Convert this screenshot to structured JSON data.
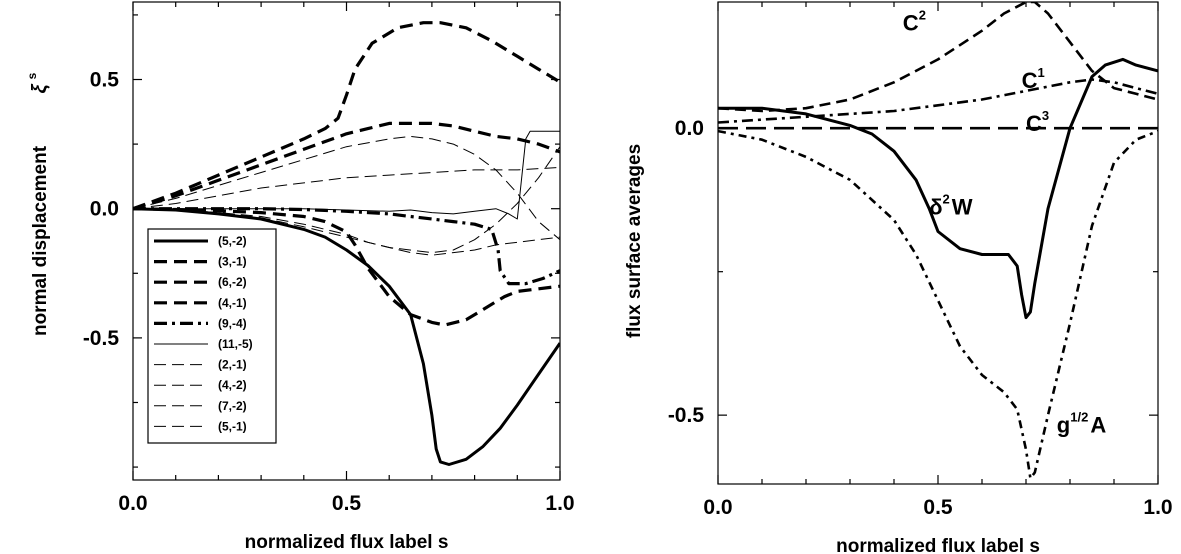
{
  "chart_data": [
    {
      "type": "line",
      "xlabel": "normalized flux label s",
      "ylabel": "normal displacement",
      "ylabel_symbol": "ξ",
      "ylabel_symbol_sup": "s",
      "xlim": [
        0,
        1
      ],
      "ylim": [
        -1.05,
        0.8
      ],
      "xticks": [
        0.0,
        0.5,
        1.0
      ],
      "xtick_labels": [
        "0.0",
        "0.5",
        "1.0"
      ],
      "yticks": [
        -0.5,
        0.0,
        0.5
      ],
      "ytick_labels": [
        "-0.5",
        "0.0",
        "0.5"
      ],
      "legend_placement": "lower-left",
      "series": [
        {
          "name": "(5,-2)",
          "style": "solid-thick",
          "x": [
            0,
            0.1,
            0.2,
            0.3,
            0.4,
            0.45,
            0.5,
            0.55,
            0.6,
            0.65,
            0.68,
            0.7,
            0.71,
            0.72,
            0.74,
            0.78,
            0.82,
            0.86,
            0.9,
            0.95,
            1.0
          ],
          "y": [
            0,
            -0.005,
            -0.02,
            -0.04,
            -0.08,
            -0.11,
            -0.16,
            -0.22,
            -0.3,
            -0.41,
            -0.6,
            -0.8,
            -0.93,
            -0.98,
            -0.99,
            -0.97,
            -0.92,
            -0.85,
            -0.76,
            -0.64,
            -0.52
          ]
        },
        {
          "name": "(3,-1)",
          "style": "dashed-thick",
          "x": [
            0,
            0.1,
            0.2,
            0.3,
            0.4,
            0.45,
            0.48,
            0.5,
            0.52,
            0.56,
            0.62,
            0.68,
            0.72,
            0.78,
            0.84,
            0.9,
            0.95,
            1.0
          ],
          "y": [
            0,
            0.06,
            0.13,
            0.2,
            0.27,
            0.31,
            0.35,
            0.44,
            0.54,
            0.64,
            0.7,
            0.72,
            0.72,
            0.7,
            0.65,
            0.59,
            0.54,
            0.49
          ]
        },
        {
          "name": "(6,-2)",
          "style": "dashed-thick",
          "x": [
            0,
            0.1,
            0.2,
            0.3,
            0.4,
            0.45,
            0.5,
            0.52,
            0.55,
            0.6,
            0.65,
            0.7,
            0.73,
            0.78,
            0.82,
            0.85,
            0.87,
            0.9,
            0.95,
            1.0
          ],
          "y": [
            0,
            -0.003,
            -0.008,
            -0.015,
            -0.03,
            -0.05,
            -0.09,
            -0.14,
            -0.23,
            -0.34,
            -0.41,
            -0.44,
            -0.45,
            -0.43,
            -0.39,
            -0.36,
            -0.34,
            -0.32,
            -0.31,
            -0.3
          ]
        },
        {
          "name": "(4,-1)",
          "style": "dashed-thick",
          "x": [
            0,
            0.1,
            0.2,
            0.3,
            0.4,
            0.5,
            0.55,
            0.6,
            0.65,
            0.7,
            0.75,
            0.8,
            0.85,
            0.9,
            0.95,
            1.0
          ],
          "y": [
            0,
            0.05,
            0.11,
            0.17,
            0.23,
            0.29,
            0.31,
            0.33,
            0.33,
            0.33,
            0.32,
            0.3,
            0.28,
            0.27,
            0.25,
            0.22
          ]
        },
        {
          "name": "(9,-4)",
          "style": "dash-dot-thick",
          "x": [
            0,
            0.1,
            0.2,
            0.3,
            0.4,
            0.5,
            0.6,
            0.65,
            0.7,
            0.75,
            0.8,
            0.84,
            0.855,
            0.86,
            0.88,
            0.92,
            0.96,
            1.0
          ],
          "y": [
            0,
            0.0,
            0.0,
            0.0,
            -0.003,
            -0.01,
            -0.02,
            -0.03,
            -0.04,
            -0.05,
            -0.06,
            -0.08,
            -0.16,
            -0.24,
            -0.29,
            -0.29,
            -0.27,
            -0.24
          ]
        },
        {
          "name": "(11,-5)",
          "style": "solid-thin",
          "x": [
            0,
            0.1,
            0.2,
            0.3,
            0.4,
            0.5,
            0.6,
            0.65,
            0.7,
            0.75,
            0.8,
            0.85,
            0.88,
            0.9,
            0.92,
            0.93,
            0.95,
            1.0
          ],
          "y": [
            0,
            0.0,
            0.0,
            0.0,
            0.0,
            -0.005,
            -0.01,
            -0.005,
            -0.015,
            -0.02,
            -0.01,
            0.0,
            -0.02,
            -0.04,
            0.27,
            0.3,
            0.3,
            0.3
          ]
        },
        {
          "name": "(2,-1)",
          "style": "dashed-thin",
          "x": [
            0,
            0.1,
            0.2,
            0.3,
            0.4,
            0.5,
            0.6,
            0.65,
            0.7,
            0.75,
            0.8,
            0.85,
            0.9,
            0.95,
            1.0
          ],
          "y": [
            0,
            0.04,
            0.09,
            0.14,
            0.19,
            0.24,
            0.27,
            0.28,
            0.27,
            0.25,
            0.21,
            0.15,
            0.06,
            -0.05,
            -0.12
          ]
        },
        {
          "name": "(4,-2)",
          "style": "dashed-thin",
          "x": [
            0,
            0.1,
            0.2,
            0.3,
            0.4,
            0.5,
            0.6,
            0.7,
            0.8,
            0.9,
            1.0
          ],
          "y": [
            0,
            0.02,
            0.05,
            0.08,
            0.1,
            0.12,
            0.13,
            0.14,
            0.15,
            0.15,
            0.16
          ]
        },
        {
          "name": "(7,-2)",
          "style": "dashed-thin",
          "x": [
            0,
            0.1,
            0.2,
            0.3,
            0.4,
            0.5,
            0.55,
            0.6,
            0.65,
            0.7,
            0.75,
            0.8,
            0.85,
            0.9,
            0.95,
            1.0
          ],
          "y": [
            0,
            -0.005,
            -0.015,
            -0.03,
            -0.06,
            -0.1,
            -0.13,
            -0.15,
            -0.17,
            -0.18,
            -0.17,
            -0.16,
            -0.14,
            -0.13,
            -0.12,
            -0.11
          ]
        },
        {
          "name": "(5,-1)",
          "style": "dashed-thin",
          "x": [
            0,
            0.1,
            0.2,
            0.3,
            0.4,
            0.5,
            0.6,
            0.7,
            0.75,
            0.8,
            0.85,
            0.9,
            0.95,
            1.0
          ],
          "y": [
            0,
            -0.005,
            -0.015,
            -0.035,
            -0.07,
            -0.11,
            -0.15,
            -0.17,
            -0.16,
            -0.12,
            -0.06,
            0.02,
            0.12,
            0.24
          ]
        }
      ]
    },
    {
      "type": "line",
      "xlabel": "normalized flux label s",
      "ylabel": "flux surface averages",
      "xlim": [
        0,
        1
      ],
      "ylim": [
        -0.62,
        0.22
      ],
      "xticks": [
        0.0,
        0.5,
        1.0
      ],
      "xtick_labels": [
        "0.0",
        "0.5",
        "1.0"
      ],
      "yticks": [
        -0.5,
        0.0
      ],
      "ytick_labels": [
        "-0.5",
        "0.0"
      ],
      "series": [
        {
          "name": "δ²W",
          "style": "solid-thick",
          "x": [
            0,
            0.1,
            0.2,
            0.3,
            0.35,
            0.4,
            0.45,
            0.48,
            0.5,
            0.55,
            0.6,
            0.63,
            0.66,
            0.68,
            0.69,
            0.7,
            0.71,
            0.72,
            0.75,
            0.8,
            0.85,
            0.88,
            0.92,
            0.95,
            1.0
          ],
          "y": [
            0.035,
            0.035,
            0.025,
            0.005,
            -0.01,
            -0.04,
            -0.09,
            -0.14,
            -0.18,
            -0.21,
            -0.22,
            -0.22,
            -0.22,
            -0.24,
            -0.29,
            -0.33,
            -0.32,
            -0.27,
            -0.14,
            0.0,
            0.09,
            0.11,
            0.12,
            0.11,
            0.1
          ]
        },
        {
          "name": "C²",
          "style": "dashed",
          "x": [
            0,
            0.1,
            0.2,
            0.3,
            0.4,
            0.5,
            0.6,
            0.65,
            0.7,
            0.72,
            0.75,
            0.8,
            0.85,
            0.9,
            0.95,
            1.0
          ],
          "y": [
            0.035,
            0.03,
            0.035,
            0.05,
            0.08,
            0.12,
            0.17,
            0.2,
            0.22,
            0.22,
            0.2,
            0.15,
            0.1,
            0.07,
            0.06,
            0.05
          ]
        },
        {
          "name": "C¹",
          "style": "dash-dot",
          "x": [
            0,
            0.1,
            0.2,
            0.3,
            0.4,
            0.5,
            0.6,
            0.7,
            0.8,
            0.85,
            0.9,
            0.95,
            1.0
          ],
          "y": [
            0.01,
            0.015,
            0.02,
            0.025,
            0.03,
            0.04,
            0.05,
            0.065,
            0.08,
            0.085,
            0.08,
            0.07,
            0.06
          ]
        },
        {
          "name": "C³",
          "style": "long-dash",
          "x": [
            0,
            0.2,
            0.4,
            0.6,
            0.8,
            1.0
          ],
          "y": [
            0,
            0,
            0,
            0,
            0,
            0
          ]
        },
        {
          "name": "g¹ᐟ²A",
          "style": "dotted-dash",
          "x": [
            0,
            0.1,
            0.2,
            0.3,
            0.4,
            0.45,
            0.5,
            0.55,
            0.6,
            0.65,
            0.68,
            0.7,
            0.71,
            0.72,
            0.75,
            0.8,
            0.85,
            0.9,
            0.95,
            1.0
          ],
          "y": [
            -0.005,
            -0.02,
            -0.05,
            -0.09,
            -0.16,
            -0.22,
            -0.3,
            -0.38,
            -0.43,
            -0.46,
            -0.49,
            -0.56,
            -0.61,
            -0.6,
            -0.5,
            -0.34,
            -0.17,
            -0.06,
            -0.02,
            -0.005
          ]
        }
      ],
      "annotations": [
        {
          "text": "C",
          "sup": "2",
          "x": 0.42,
          "y": 0.17
        },
        {
          "text": "C",
          "sup": "1",
          "x": 0.69,
          "y": 0.07
        },
        {
          "text": "C",
          "sup": "3",
          "x": 0.7,
          "y": -0.005
        },
        {
          "text": "δ",
          "sup": "2",
          "tail": "W",
          "x": 0.48,
          "y": -0.15
        },
        {
          "text": "g",
          "sup": "1/2",
          "tail": "A",
          "x": 0.77,
          "y": -0.53
        }
      ]
    }
  ]
}
